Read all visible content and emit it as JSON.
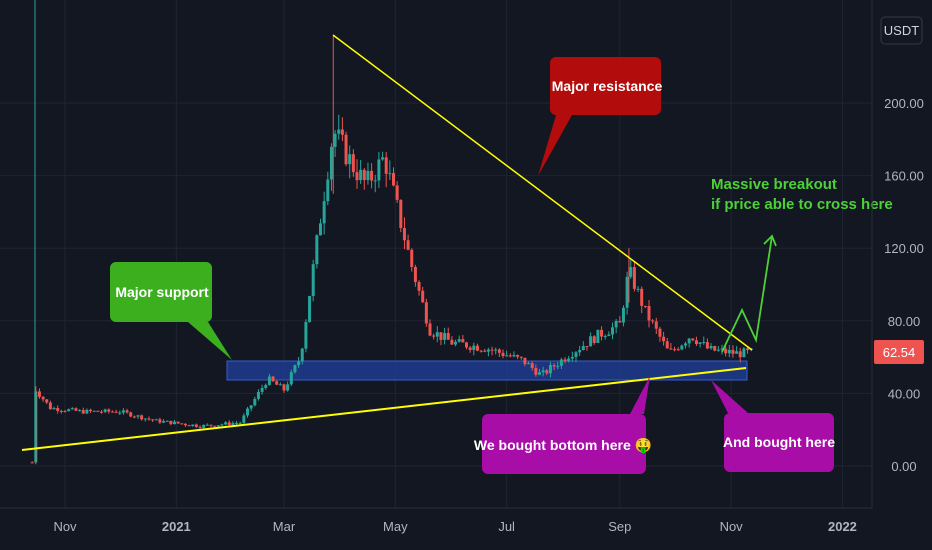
{
  "chart_data": {
    "type": "candlestick",
    "currency_label": "USDT",
    "y_ticks": [
      "200.00",
      "160.00",
      "120.00",
      "80.00",
      "40.00",
      "0.00"
    ],
    "y_tick_values": [
      200,
      160,
      120,
      80,
      40,
      0
    ],
    "x_ticks": [
      "Nov",
      "2021",
      "Mar",
      "May",
      "Jul",
      "Sep",
      "Nov",
      "2022"
    ],
    "last_price": "62.54",
    "ylim": [
      -12,
      237
    ],
    "colors": {
      "up": "#26a69a",
      "down": "#ef5350",
      "background": "#131722",
      "grid": "#1f2433",
      "resistance_line": "#ffff00",
      "support_zone": "#1d3c8f",
      "breakout_arrow": "#4cd137"
    },
    "approx_price_path": [
      [
        "2020-10-14",
        2
      ],
      [
        "2020-10-16",
        42
      ],
      [
        "2020-10-24",
        32
      ],
      [
        "2020-11-10",
        30
      ],
      [
        "2020-12-01",
        30
      ],
      [
        "2020-12-20",
        25
      ],
      [
        "2021-01-15",
        22
      ],
      [
        "2021-02-05",
        24
      ],
      [
        "2021-02-20",
        48
      ],
      [
        "2021-03-01",
        42
      ],
      [
        "2021-03-10",
        60
      ],
      [
        "2021-03-20",
        130
      ],
      [
        "2021-03-28",
        185
      ],
      [
        "2021-04-08",
        165
      ],
      [
        "2021-04-15",
        155
      ],
      [
        "2021-04-25",
        170
      ],
      [
        "2021-05-10",
        110
      ],
      [
        "2021-05-20",
        75
      ],
      [
        "2021-06-01",
        68
      ],
      [
        "2021-06-20",
        65
      ],
      [
        "2021-07-10",
        58
      ],
      [
        "2021-07-20",
        50
      ],
      [
        "2021-08-05",
        62
      ],
      [
        "2021-08-20",
        72
      ],
      [
        "2021-09-01",
        78
      ],
      [
        "2021-09-06",
        108
      ],
      [
        "2021-09-15",
        85
      ],
      [
        "2021-09-28",
        62
      ],
      [
        "2021-10-10",
        72
      ],
      [
        "2021-10-20",
        64
      ],
      [
        "2021-11-05",
        62
      ],
      [
        "2021-11-12",
        62.54
      ]
    ]
  },
  "annotations": {
    "major_resistance": "Major resistance",
    "major_support": "Major support",
    "breakout_line1": "Massive breakout",
    "breakout_line2": "if price able to cross here",
    "bought_bottom": "We bought bottom here 🤑",
    "bought_here": "And bought here"
  }
}
